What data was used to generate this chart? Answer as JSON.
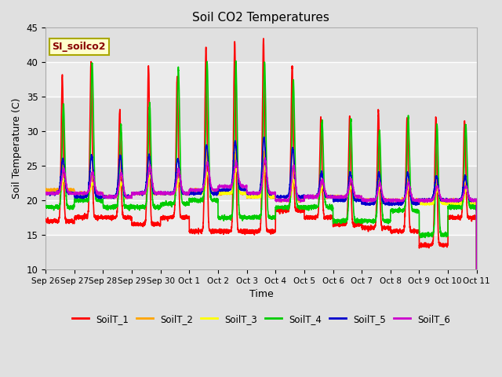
{
  "title": "Soil CO2 Temperatures",
  "xlabel": "Time",
  "ylabel": "Soil Temperature (C)",
  "ylim": [
    10,
    45
  ],
  "yticks": [
    10,
    15,
    20,
    25,
    30,
    35,
    40,
    45
  ],
  "annotation_text": "SI_soilco2",
  "annotation_bg": "#ffffcc",
  "annotation_border": "#aaa800",
  "annotation_text_color": "#880000",
  "plot_bg": "#e0e0e0",
  "fig_bg": "#e0e0e0",
  "legend_labels": [
    "SoilT_1",
    "SoilT_2",
    "SoilT_3",
    "SoilT_4",
    "SoilT_5",
    "SoilT_6"
  ],
  "line_colors": [
    "#ff0000",
    "#ffa500",
    "#ffff00",
    "#00cc00",
    "#0000cc",
    "#cc00cc"
  ],
  "line_width": 1.2,
  "num_days": 15,
  "tick_labels": [
    "Sep 26",
    "Sep 27",
    "Sep 28",
    "Sep 29",
    "Sep 30",
    "Oct 1",
    "Oct 2",
    "Oct 3",
    "Oct 4",
    "Oct 5",
    "Oct 6",
    "Oct 7",
    "Oct 8",
    "Oct 9",
    "Oct 10",
    "Oct 11"
  ],
  "grid_color": "#ffffff",
  "grid_linewidth": 1.0,
  "white_band_ranges": [
    [
      35,
      40
    ],
    [
      25,
      30
    ],
    [
      15,
      20
    ]
  ],
  "white_band_color": "#ebebeb"
}
